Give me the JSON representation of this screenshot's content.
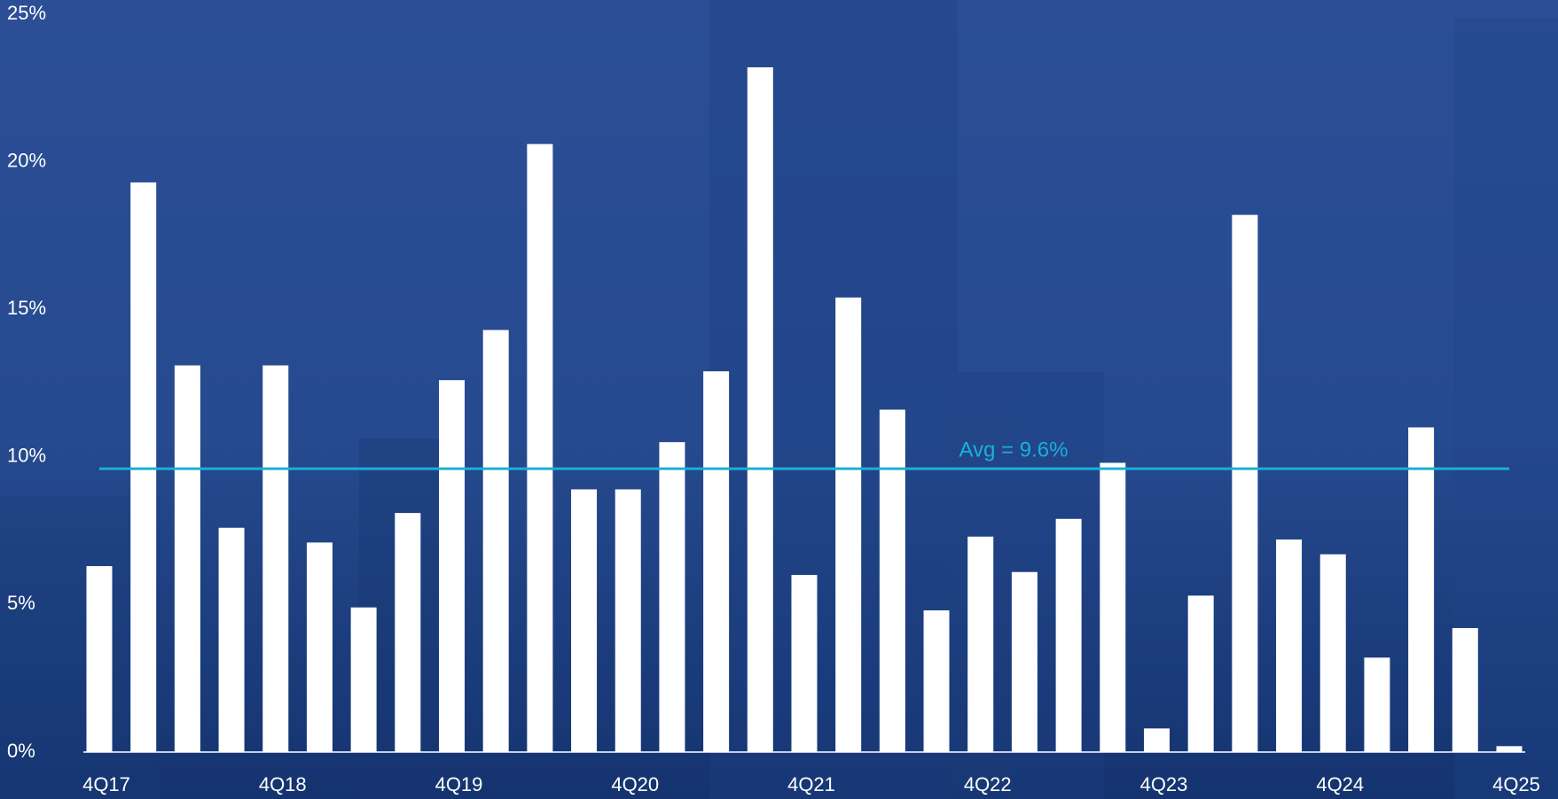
{
  "chart_data": {
    "type": "bar",
    "categories": [
      "4Q17",
      null,
      null,
      null,
      "4Q18",
      null,
      null,
      null,
      "4Q19",
      null,
      null,
      null,
      "4Q20",
      null,
      null,
      null,
      "4Q21",
      null,
      null,
      null,
      "4Q22",
      null,
      null,
      null,
      "4Q23",
      null,
      null,
      null,
      "4Q24",
      null,
      null,
      null,
      "4Q25"
    ],
    "values": [
      6.3,
      19.3,
      13.1,
      7.6,
      13.1,
      7.1,
      4.9,
      8.1,
      12.6,
      14.3,
      20.6,
      8.9,
      8.9,
      10.5,
      12.9,
      23.2,
      6.0,
      15.4,
      11.6,
      4.8,
      7.3,
      6.1,
      7.9,
      9.8,
      0.8,
      5.3,
      18.2,
      7.2,
      6.7,
      3.2,
      11.0,
      4.2,
      0.2
    ],
    "color": "#ffffff",
    "ylim": [
      0,
      25
    ],
    "yticks": [
      {
        "value": 0,
        "label": "0%"
      },
      {
        "value": 5,
        "label": "5%"
      },
      {
        "value": 10,
        "label": "10%"
      },
      {
        "value": 15,
        "label": "15%"
      },
      {
        "value": 20,
        "label": "20%"
      },
      {
        "value": 25,
        "label": "25%"
      }
    ],
    "average": {
      "value": 9.6,
      "label": "Avg = 9.6%",
      "color": "#1ab0d8"
    }
  }
}
